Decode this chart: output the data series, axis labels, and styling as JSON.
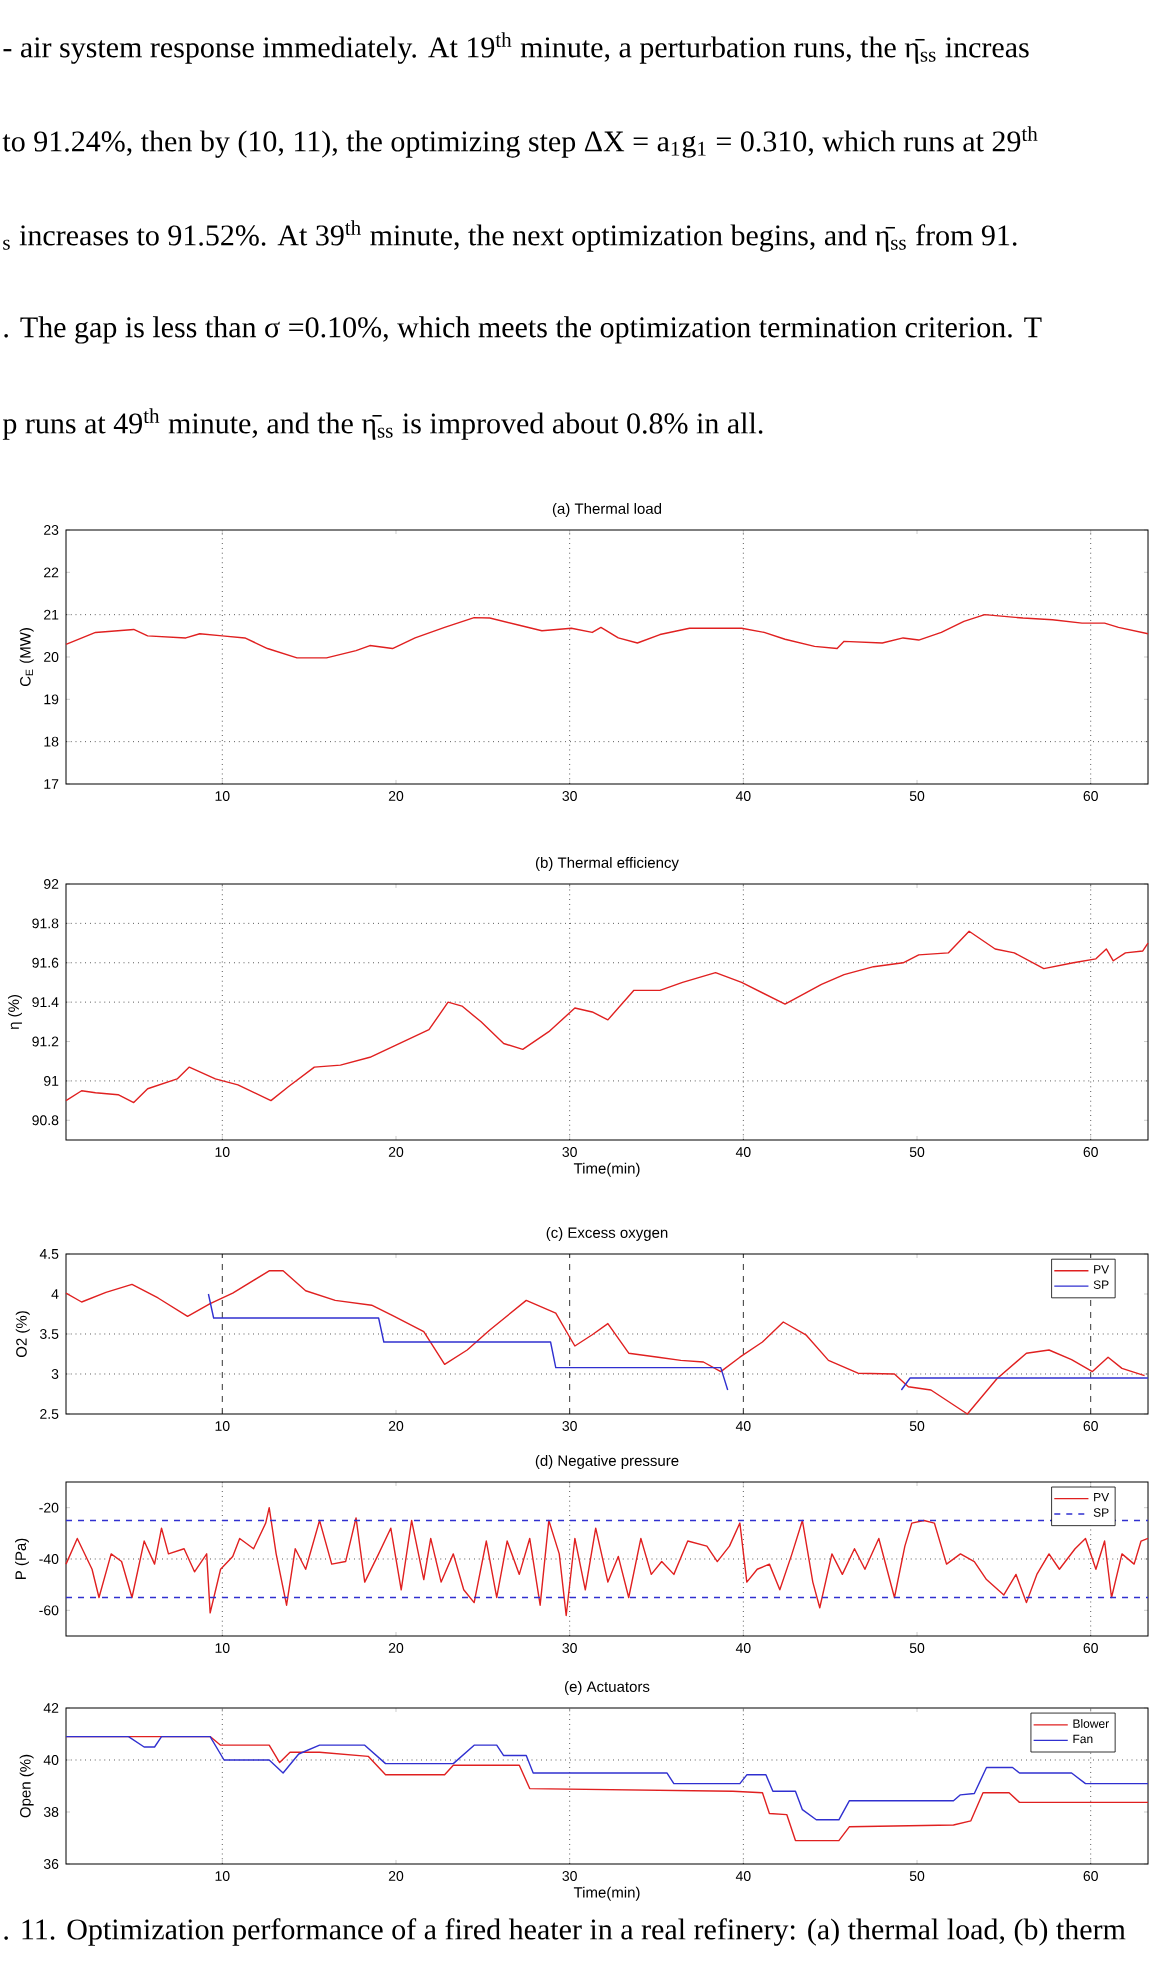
{
  "chart_data": [
    {
      "type": "line",
      "title": "(a) Thermal load",
      "ylabel": "C$_{E}$ (MW)",
      "xlim": [
        1,
        63.3
      ],
      "ylim": [
        17,
        23
      ],
      "xticks": [
        10,
        20,
        30,
        40,
        50,
        60
      ],
      "yticks": [
        17,
        18,
        19,
        20,
        21,
        22,
        23
      ],
      "annotations": [
        "- air system response immediately. At 19$^{th}$ minute, a perturbation runs, the η̄$_{ss}$ increas",
        "to 91.24%, then by (10, 11), the optimizing step ΔX = a$_{1}$g$_{1}$ = 0.310, which runs at 29$^{th}$",
        "$_{s}$ increases to 91.52%. At 39$^{th}$ minute, the next optimization begins, and η̄$_{ss}$ from 91.",
        ". The gap is less than σ =0.10%, which meets the optimization termination criterion. T",
        "p runs at 49$^{th}$ minute, and the η̄$_{ss}$ is improved about 0.8% in all."
      ],
      "ref_lines": [
        {
          "axis": "x",
          "value": 10,
          "color": "#000000",
          "line_style": "dotted"
        },
        {
          "axis": "x",
          "value": 30,
          "color": "#000000",
          "line_style": "dotted"
        },
        {
          "axis": "x",
          "value": 40,
          "color": "#000000",
          "line_style": "dotted"
        },
        {
          "axis": "x",
          "value": 60,
          "color": "#000000",
          "line_style": "dotted"
        },
        {
          "axis": "y",
          "value": 21,
          "color": "#000000",
          "line_style": "dotted"
        },
        {
          "axis": "y",
          "value": 18,
          "color": "#000000",
          "line_style": "dotted"
        }
      ],
      "series": [
        {
          "color": "#e02020",
          "x": [
            1,
            2.7,
            4.9,
            5.7,
            7.9,
            8.7,
            10,
            11.3,
            12.6,
            14.3,
            16,
            17.7,
            18.5,
            19.8,
            21.1,
            22.8,
            24.5,
            25.4,
            27.1,
            28.4,
            30.1,
            31.3,
            31.8,
            32.8,
            33.9,
            35.2,
            36.9,
            39.9,
            41.2,
            42.4,
            44.1,
            45.4,
            45.8,
            48,
            49.2,
            50.1,
            51.4,
            52.7,
            53.9,
            56.1,
            57.8,
            59.5,
            60.8,
            61.6,
            63.3
          ],
          "values": [
            20.3,
            20.58,
            20.65,
            20.5,
            20.45,
            20.55,
            20.5,
            20.45,
            20.2,
            19.98,
            19.98,
            20.15,
            20.27,
            20.2,
            20.45,
            20.7,
            20.93,
            20.92,
            20.75,
            20.62,
            20.68,
            20.58,
            20.7,
            20.45,
            20.33,
            20.53,
            20.68,
            20.68,
            20.58,
            20.42,
            20.25,
            20.2,
            20.37,
            20.33,
            20.45,
            20.4,
            20.58,
            20.84,
            21.0,
            20.92,
            20.88,
            20.8,
            20.8,
            20.7,
            20.55
          ]
        }
      ]
    },
    {
      "type": "line",
      "title": "(b) Thermal efficiency",
      "xlabel": "Time(min)",
      "ylabel": "η (%)",
      "xlim": [
        1,
        63.3
      ],
      "ylim": [
        90.7,
        92
      ],
      "xticks": [
        10,
        20,
        30,
        40,
        50,
        60
      ],
      "yticks": [
        90.8,
        91,
        91.2,
        91.4,
        91.6,
        91.8,
        92
      ],
      "ref_lines": [
        {
          "axis": "x",
          "value": 10,
          "color": "#000000",
          "line_style": "dotted"
        },
        {
          "axis": "x",
          "value": 30,
          "color": "#000000",
          "line_style": "dotted"
        },
        {
          "axis": "x",
          "value": 40,
          "color": "#000000",
          "line_style": "dotted"
        },
        {
          "axis": "x",
          "value": 60,
          "color": "#000000",
          "line_style": "dotted"
        },
        {
          "axis": "y",
          "value": 91,
          "color": "#000000",
          "line_style": "dotted"
        },
        {
          "axis": "y",
          "value": 91.4,
          "color": "#000000",
          "line_style": "dotted"
        },
        {
          "axis": "y",
          "value": 91.6,
          "color": "#000000",
          "line_style": "dotted"
        },
        {
          "axis": "y",
          "value": 91.8,
          "color": "#000000",
          "line_style": "dotted"
        }
      ],
      "series": [
        {
          "color": "#e02020",
          "x": [
            1,
            1.9,
            2.7,
            4,
            4.9,
            5.7,
            7.4,
            8.1,
            9.6,
            10.9,
            12.8,
            13.8,
            15.3,
            16.8,
            18.5,
            20.2,
            21.9,
            23,
            23.8,
            24.9,
            26.2,
            27.3,
            28.8,
            30.3,
            31.3,
            32.2,
            33.7,
            35.2,
            36.5,
            38.4,
            39.9,
            42.4,
            44.5,
            45.8,
            47.5,
            49.2,
            50.1,
            51.8,
            53,
            54.5,
            55.6,
            57.3,
            59,
            60.3,
            60.9,
            61.3,
            62,
            63,
            63.3
          ],
          "values": [
            90.9,
            90.95,
            90.94,
            90.93,
            90.89,
            90.96,
            91.01,
            91.07,
            91.01,
            90.98,
            90.9,
            90.97,
            91.07,
            91.08,
            91.12,
            91.19,
            91.26,
            91.4,
            91.38,
            91.3,
            91.19,
            91.16,
            91.25,
            91.37,
            91.35,
            91.31,
            91.46,
            91.46,
            91.5,
            91.55,
            91.5,
            91.39,
            91.49,
            91.54,
            91.58,
            91.6,
            91.64,
            91.65,
            91.76,
            91.67,
            91.65,
            91.57,
            91.6,
            91.62,
            91.67,
            91.61,
            91.65,
            91.66,
            91.7
          ]
        }
      ]
    },
    {
      "type": "line",
      "title": "(c) Excess oxygen",
      "ylabel": "O2 (%)",
      "xlim": [
        1,
        63.3
      ],
      "ylim": [
        2.5,
        4.5
      ],
      "xticks": [
        10,
        20,
        30,
        40,
        50,
        60
      ],
      "yticks": [
        2.5,
        3,
        3.5,
        4,
        4.5
      ],
      "legend": "top right",
      "ref_lines": [
        {
          "axis": "x",
          "value": 10,
          "color": "#000000",
          "line_style": "dashed"
        },
        {
          "axis": "x",
          "value": 30,
          "color": "#000000",
          "line_style": "dashed"
        },
        {
          "axis": "x",
          "value": 40,
          "color": "#000000",
          "line_style": "dashed"
        },
        {
          "axis": "x",
          "value": 60,
          "color": "#000000",
          "line_style": "dashed"
        },
        {
          "axis": "y",
          "value": 3.5,
          "color": "#000000",
          "line_style": "dotted"
        },
        {
          "axis": "y",
          "value": 3,
          "color": "#000000",
          "line_style": "dotted"
        }
      ],
      "series": [
        {
          "name": "PV",
          "color": "#e02020",
          "x": [
            1,
            1.9,
            3.3,
            4.8,
            6.3,
            8,
            9.3,
            10.6,
            12.7,
            13.5,
            14.8,
            16.5,
            18.6,
            19.9,
            21.6,
            22.8,
            24.1,
            25.4,
            27.5,
            29.2,
            30.3,
            31.3,
            32.2,
            33.4,
            35.1,
            36.4,
            37.7,
            38.7,
            39.8,
            41.1,
            42.3,
            43.6,
            44.9,
            46.6,
            48.7,
            49.5,
            50.8,
            52.9,
            54.6,
            56.3,
            57.6,
            58.9,
            60.1,
            61,
            61.8,
            63.1
          ],
          "values": [
            4.01,
            3.9,
            4.02,
            4.12,
            3.95,
            3.72,
            3.88,
            4.01,
            4.29,
            4.29,
            4.04,
            3.92,
            3.86,
            3.72,
            3.53,
            3.12,
            3.3,
            3.55,
            3.92,
            3.76,
            3.35,
            3.49,
            3.63,
            3.26,
            3.21,
            3.17,
            3.15,
            3.03,
            3.21,
            3.4,
            3.65,
            3.49,
            3.17,
            3.01,
            3.0,
            2.84,
            2.8,
            2.5,
            2.94,
            3.26,
            3.3,
            3.18,
            3.03,
            3.21,
            3.07,
            2.98
          ]
        },
        {
          "name": "SP",
          "color": "#3030d0",
          "x": [
            9.2,
            9.5,
            19.0,
            19.3,
            28.9,
            29.2,
            38.7,
            39.1,
            44,
            49.1,
            49.6,
            63.3
          ],
          "values": [
            4.0,
            3.7,
            3.7,
            3.4,
            3.4,
            3.08,
            3.08,
            2.8,
            null,
            2.8,
            2.95,
            2.95
          ]
        }
      ]
    },
    {
      "type": "line",
      "title": "(d) Negative pressure",
      "ylabel": "P (Pa)",
      "xlim": [
        1,
        63.3
      ],
      "ylim": [
        -70,
        -10
      ],
      "xticks": [
        10,
        20,
        30,
        40,
        50,
        60
      ],
      "yticks": [
        -60,
        -40,
        -20
      ],
      "legend": "top right",
      "ref_lines": [
        {
          "axis": "x",
          "value": 10,
          "color": "#000000",
          "line_style": "dotted"
        },
        {
          "axis": "x",
          "value": 30,
          "color": "#000000",
          "line_style": "dotted"
        },
        {
          "axis": "x",
          "value": 40,
          "color": "#000000",
          "line_style": "dotted"
        },
        {
          "axis": "x",
          "value": 60,
          "color": "#000000",
          "line_style": "dotted"
        },
        {
          "axis": "y",
          "value": -40,
          "color": "#000000",
          "line_style": "dotted"
        }
      ],
      "series": [
        {
          "name": "PV",
          "color": "#e02020",
          "x": [
            1,
            1.65,
            2.5,
            2.9,
            3.6,
            4.2,
            4.8,
            5.5,
            6.1,
            6.5,
            6.9,
            7.8,
            8.4,
            9.1,
            9.3,
            9.9,
            10.6,
            11,
            11.8,
            12.5,
            12.7,
            13.1,
            13.7,
            14.2,
            14.8,
            15.6,
            16.3,
            17.1,
            17.7,
            18.2,
            19,
            19.7,
            20.3,
            20.9,
            21.6,
            22,
            22.6,
            23.3,
            23.9,
            24.5,
            25.2,
            25.8,
            26.4,
            27.1,
            27.7,
            28.3,
            28.8,
            29.4,
            29.8,
            30.3,
            30.9,
            31.5,
            32.2,
            32.8,
            33.4,
            34.1,
            34.7,
            35.3,
            36,
            36.8,
            37.9,
            38.5,
            39.2,
            39.8,
            40.2,
            40.8,
            41.5,
            42.1,
            42.8,
            43.4,
            44,
            44.4,
            45.1,
            45.7,
            46.4,
            47,
            47.8,
            48.7,
            49.3,
            49.7,
            50.4,
            51,
            51.7,
            52.5,
            53.3,
            54,
            55,
            55.7,
            56.3,
            56.9,
            57.6,
            58.2,
            59.1,
            59.7,
            60.3,
            60.8,
            61.2,
            61.8,
            62.5,
            62.9,
            63.3
          ],
          "values": [
            -42,
            -32,
            -44,
            -55,
            -38,
            -41,
            -55,
            -33,
            -42,
            -28,
            -38,
            -36,
            -45,
            -38,
            -61,
            -44,
            -39,
            -32,
            -36,
            -26,
            -20,
            -38,
            -58,
            -36,
            -44,
            -25,
            -42,
            -41,
            -24,
            -49,
            -38,
            -28,
            -52,
            -25,
            -48,
            -32,
            -49,
            -38,
            -52,
            -57,
            -33,
            -55,
            -33,
            -46,
            -32,
            -58,
            -25,
            -38,
            -62,
            -32,
            -52,
            -28,
            -49,
            -39,
            -55,
            -32,
            -46,
            -41,
            -46,
            -33,
            -35,
            -41,
            -35,
            -26,
            -49,
            -44,
            -42,
            -52,
            -38,
            -25,
            -49,
            -59,
            -38,
            -46,
            -36,
            -44,
            -32,
            -55,
            -35,
            -26,
            -25,
            -26,
            -42,
            -38,
            -41,
            -48,
            -54,
            -46,
            -57,
            -46,
            -38,
            -44,
            -36,
            -32,
            -44,
            -33,
            -55,
            -38,
            -42,
            -33,
            -32
          ]
        },
        {
          "name": "SP",
          "color": "#3030d0",
          "line_style": "dashed",
          "x": [
            1,
            63.3
          ],
          "values": [
            -25,
            -25
          ]
        },
        {
          "color": "#3030d0",
          "line_style": "dashed",
          "x": [
            1,
            63.3
          ],
          "values": [
            -55,
            -55
          ]
        }
      ]
    },
    {
      "type": "line",
      "title": "(e) Actuators",
      "xlabel": "Time(min)",
      "ylabel": "Open (%)",
      "xlim": [
        1,
        63.3
      ],
      "ylim": [
        36,
        42
      ],
      "xticks": [
        10,
        20,
        30,
        40,
        50,
        60
      ],
      "yticks": [
        36,
        38,
        40,
        42
      ],
      "legend": "top right",
      "annotations": [
        ". 11. Optimization performance of a fired heater in a real refinery: (a) thermal load, (b) therm"
      ],
      "ref_lines": [
        {
          "axis": "x",
          "value": 10,
          "color": "#000000",
          "line_style": "dotted"
        },
        {
          "axis": "x",
          "value": 30,
          "color": "#000000",
          "line_style": "dotted"
        },
        {
          "axis": "x",
          "value": 40,
          "color": "#000000",
          "line_style": "dotted"
        },
        {
          "axis": "x",
          "value": 60,
          "color": "#000000",
          "line_style": "dotted"
        },
        {
          "axis": "y",
          "value": 40,
          "color": "#000000",
          "line_style": "dotted"
        }
      ],
      "series": [
        {
          "name": "Blower",
          "color": "#e02020",
          "x": [
            1,
            9.3,
            9.9,
            12.7,
            13.3,
            13.9,
            15.6,
            18.4,
            19.4,
            22.8,
            23.3,
            27.1,
            27.7,
            39.4,
            41.1,
            41.5,
            42.5,
            43,
            45.5,
            46.1,
            52.1,
            53.1,
            53.8,
            55.3,
            55.9,
            63.3
          ],
          "values": [
            40.9,
            40.9,
            40.57,
            40.57,
            39.9,
            40.3,
            40.3,
            40.14,
            39.43,
            39.43,
            39.8,
            39.8,
            38.9,
            38.8,
            38.74,
            37.94,
            37.9,
            36.9,
            36.9,
            37.43,
            37.5,
            37.66,
            38.74,
            38.74,
            38.37,
            38.37
          ]
        },
        {
          "name": "Fan",
          "color": "#3030d0",
          "x": [
            1,
            4.6,
            5.5,
            6.1,
            6.5,
            9.3,
            10.1,
            12.7,
            13.5,
            14.4,
            15.6,
            18.2,
            19.4,
            23.3,
            24.5,
            25.8,
            26.2,
            27.5,
            27.9,
            35.6,
            36,
            39.8,
            40.2,
            41.3,
            41.7,
            43,
            43.4,
            44.2,
            45.5,
            46.1,
            52.1,
            52.5,
            53.3,
            54,
            55.5,
            55.9,
            58.9,
            59.7,
            63.3
          ],
          "values": [
            40.9,
            40.9,
            40.5,
            40.5,
            40.9,
            40.9,
            40.0,
            40.0,
            39.5,
            40.23,
            40.57,
            40.57,
            39.86,
            39.86,
            40.57,
            40.57,
            40.17,
            40.17,
            39.5,
            39.5,
            39.09,
            39.09,
            39.43,
            39.43,
            38.8,
            38.8,
            38.09,
            37.7,
            37.7,
            38.43,
            38.43,
            38.66,
            38.71,
            39.71,
            39.71,
            39.5,
            39.5,
            39.09,
            39.09
          ]
        }
      ]
    }
  ]
}
